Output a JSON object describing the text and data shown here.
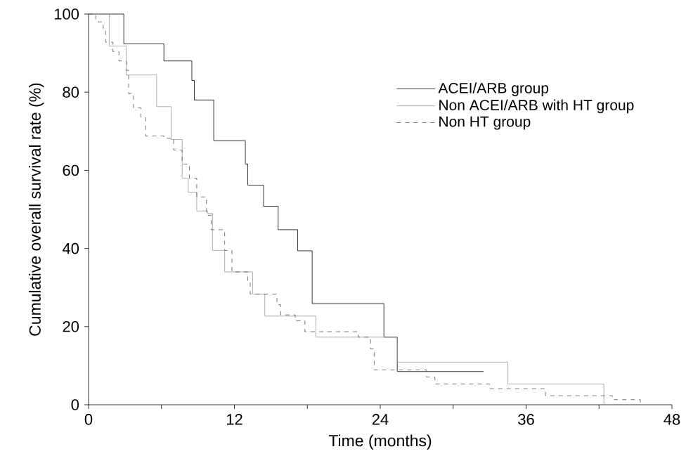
{
  "chart_data": {
    "type": "step",
    "xlabel": "Time (months)",
    "ylabel": "Cumulative overall survival rate (%)",
    "xlim": [
      0,
      48
    ],
    "ylim": [
      0,
      100
    ],
    "xticks": [
      0,
      {
        "value": 6,
        "label": null
      },
      12,
      {
        "value": 18,
        "label": null
      },
      24,
      {
        "value": 30,
        "label": null
      },
      36,
      {
        "value": 42,
        "label": null
      },
      48
    ],
    "yticks": [
      0,
      20,
      40,
      60,
      80,
      100
    ],
    "grid": false,
    "legend": "top right",
    "series": [
      {
        "name": "ACEI/ARB group",
        "color": "#000000",
        "line_style": "solid",
        "x": [
          0,
          2.9,
          6.2,
          8.5,
          8.7,
          10.3,
          12.9,
          13.1,
          14.4,
          15.6,
          17.2,
          18.4,
          24.3,
          25.4,
          32.5
        ],
        "values": [
          100,
          92.4,
          88,
          83,
          78,
          67.6,
          61.6,
          56.2,
          50.8,
          44.8,
          39.4,
          25.9,
          17.3,
          8.5,
          8.5
        ]
      },
      {
        "name": "Non ACEI/ARB with HT group",
        "color": "#999999",
        "line_style": "solid",
        "x": [
          0,
          1.7,
          3.1,
          5.6,
          6.8,
          7.7,
          8.2,
          8.9,
          9.8,
          10.2,
          11.2,
          13.5,
          14.5,
          18.7,
          25.4,
          34.5,
          42.4
        ],
        "values": [
          100,
          91.8,
          84.4,
          76.3,
          67.9,
          58,
          54.4,
          49.6,
          49,
          39.5,
          34,
          28.3,
          22.7,
          17.3,
          10.9,
          5.3,
          0
        ]
      },
      {
        "name": "Non HT group",
        "color": "#555555",
        "line_style": "dashed",
        "x": [
          0,
          0.6,
          1.2,
          1.4,
          2.0,
          2.5,
          3.1,
          3.3,
          3.7,
          4.3,
          4.7,
          6.2,
          7.0,
          7.7,
          8.3,
          8.9,
          9.7,
          10.1,
          11.2,
          11.8,
          13.1,
          13.3,
          15.5,
          15.8,
          17.0,
          17.8,
          22.2,
          23.2,
          23.5,
          27.8,
          28.5,
          33.0,
          37.6,
          43.1,
          45.4
        ],
        "values": [
          100,
          98,
          96.4,
          92.8,
          90.4,
          88,
          85.6,
          79.6,
          76,
          73.6,
          68.8,
          68.2,
          65.2,
          61.6,
          58,
          53.2,
          48.5,
          44.8,
          39.5,
          34,
          31.7,
          28.3,
          25.6,
          23,
          21.5,
          18.7,
          17.3,
          14.3,
          8.9,
          7.1,
          5.3,
          4.1,
          2.3,
          1.3,
          0
        ]
      }
    ]
  }
}
